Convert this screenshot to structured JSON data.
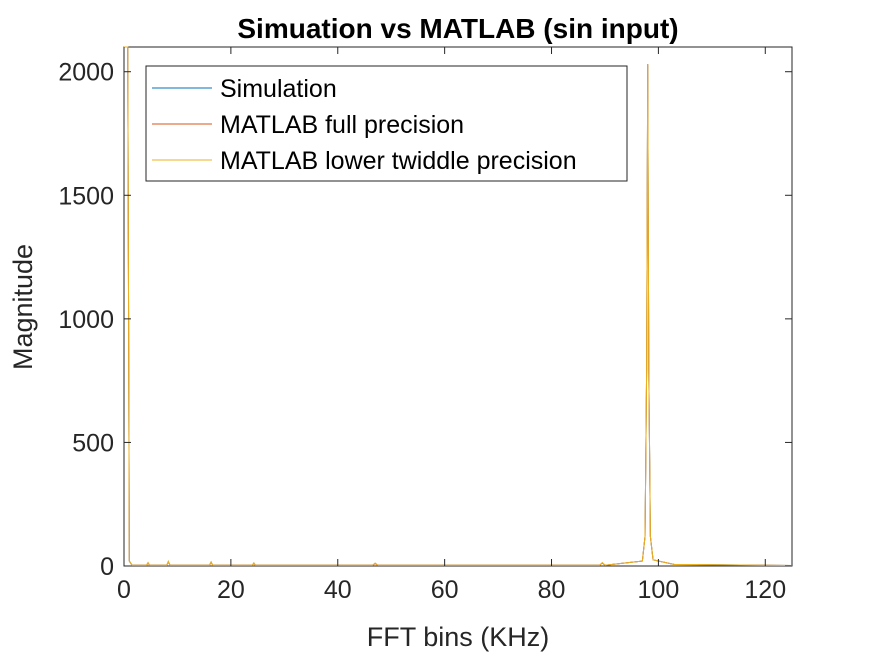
{
  "chart_data": {
    "type": "line",
    "title": "Simuation vs MATLAB (sin input)",
    "xlabel": "FFT bins (KHz)",
    "ylabel": "Magnitude",
    "xlim": [
      0,
      125
    ],
    "ylim": [
      0,
      2100
    ],
    "xticks": [
      0,
      20,
      40,
      60,
      80,
      100,
      120
    ],
    "yticks": [
      0,
      500,
      1000,
      1500,
      2000
    ],
    "xtick_labels": [
      "0",
      "20",
      "40",
      "60",
      "80",
      "100",
      "120"
    ],
    "ytick_labels": [
      "0",
      "500",
      "1000",
      "1500",
      "2000"
    ],
    "grid": false,
    "legend_position": "top-left",
    "series": [
      {
        "name": "Simulation",
        "color": "#0072BD",
        "x": [
          0,
          0.3,
          0.7,
          1.0,
          1.5,
          4.2,
          4.5,
          4.8,
          8.0,
          8.3,
          8.6,
          16.0,
          16.3,
          16.6,
          24.0,
          24.3,
          24.6,
          46.5,
          47.0,
          47.5,
          89.0,
          89.5,
          90.0,
          97.0,
          97.5,
          97.8,
          98.0,
          98.2,
          98.5,
          99.0,
          103,
          107,
          125
        ],
        "y": [
          2100,
          2100,
          2100,
          20,
          3,
          3,
          13,
          3,
          3,
          18,
          3,
          3,
          16,
          3,
          3,
          12,
          3,
          3,
          11,
          3,
          3,
          13,
          3,
          20,
          120,
          800,
          2030,
          800,
          120,
          25,
          6,
          6,
          2
        ]
      },
      {
        "name": "MATLAB full precision",
        "color": "#D95319",
        "x": [
          0,
          0.3,
          0.7,
          1.0,
          1.5,
          4.2,
          4.5,
          4.8,
          8.0,
          8.3,
          8.6,
          16.0,
          16.3,
          16.6,
          24.0,
          24.3,
          24.6,
          46.5,
          47.0,
          47.5,
          89.0,
          89.5,
          90.0,
          97.0,
          97.5,
          97.8,
          98.0,
          98.2,
          98.5,
          99.0,
          103,
          107,
          125
        ],
        "y": [
          2100,
          2100,
          2100,
          20,
          3,
          3,
          12,
          3,
          3,
          17,
          3,
          3,
          15,
          3,
          3,
          11,
          3,
          3,
          10,
          3,
          3,
          12,
          3,
          20,
          120,
          800,
          2030,
          800,
          120,
          25,
          6,
          5,
          2
        ]
      },
      {
        "name": "MATLAB lower twiddle precision",
        "color": "#EDB120",
        "x": [
          0,
          0.3,
          0.7,
          1.0,
          1.5,
          4.2,
          4.5,
          4.8,
          8.0,
          8.3,
          8.6,
          16.0,
          16.3,
          16.6,
          24.0,
          24.3,
          24.6,
          46.5,
          47.0,
          47.5,
          89.0,
          89.5,
          90.0,
          97.0,
          97.5,
          97.8,
          98.0,
          98.2,
          98.5,
          99.0,
          103,
          107,
          125
        ],
        "y": [
          2100,
          2100,
          2100,
          20,
          3,
          3,
          14,
          3,
          3,
          19,
          3,
          3,
          17,
          3,
          3,
          13,
          3,
          3,
          12,
          3,
          3,
          14,
          3,
          20,
          120,
          800,
          2030,
          800,
          120,
          25,
          6,
          6,
          2
        ]
      }
    ]
  }
}
